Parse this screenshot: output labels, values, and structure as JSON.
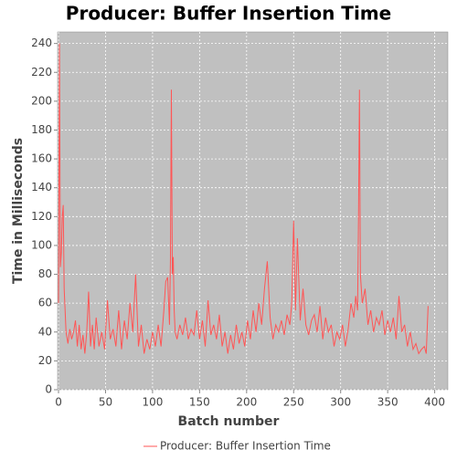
{
  "chart_data": {
    "type": "line",
    "title": "Producer: Buffer Insertion Time",
    "x_label": "Batch number",
    "y_label": "Time in Milliseconds",
    "xlim": [
      -1,
      414
    ],
    "ylim": [
      0,
      248
    ],
    "xticks": [
      0,
      50,
      100,
      150,
      200,
      250,
      300,
      350,
      400
    ],
    "yticks": [
      0,
      20,
      40,
      60,
      80,
      100,
      120,
      140,
      160,
      180,
      200,
      220,
      240
    ],
    "grid": true,
    "legend": "bottom",
    "background": "#c0c0c0",
    "x": [
      0,
      1,
      2,
      3,
      4,
      5,
      6,
      8,
      10,
      12,
      14,
      16,
      18,
      20,
      22,
      24,
      26,
      28,
      30,
      32,
      34,
      36,
      38,
      40,
      43,
      46,
      49,
      52,
      55,
      58,
      61,
      64,
      67,
      70,
      73,
      76,
      79,
      82,
      85,
      88,
      91,
      94,
      97,
      100,
      103,
      106,
      109,
      112,
      114,
      116,
      118,
      119,
      120,
      121,
      122,
      123,
      124,
      126,
      129,
      132,
      135,
      138,
      141,
      144,
      147,
      150,
      153,
      156,
      159,
      162,
      165,
      168,
      171,
      174,
      177,
      180,
      183,
      186,
      189,
      192,
      195,
      198,
      201,
      204,
      207,
      210,
      213,
      216,
      219,
      222,
      225,
      228,
      231,
      234,
      237,
      240,
      243,
      246,
      248,
      250,
      252,
      254,
      257,
      260,
      263,
      266,
      269,
      272,
      275,
      278,
      281,
      284,
      287,
      290,
      293,
      296,
      299,
      302,
      305,
      308,
      311,
      314,
      316,
      318,
      319,
      320,
      321,
      323,
      326,
      329,
      332,
      335,
      338,
      341,
      344,
      347,
      350,
      353,
      356,
      359,
      362,
      365,
      368,
      371,
      374,
      377,
      380,
      383,
      386,
      389,
      391,
      393
    ],
    "series": [
      {
        "name": "Producer: Buffer Insertion Time",
        "color": "#ff5555",
        "values": [
          60,
          240,
          85,
          95,
          120,
          128,
          70,
          40,
          32,
          42,
          35,
          40,
          48,
          30,
          45,
          28,
          38,
          25,
          40,
          68,
          30,
          45,
          28,
          50,
          30,
          40,
          28,
          62,
          35,
          42,
          30,
          55,
          28,
          48,
          35,
          60,
          40,
          80,
          30,
          45,
          25,
          35,
          28,
          40,
          30,
          45,
          30,
          55,
          75,
          78,
          45,
          90,
          208,
          80,
          92,
          55,
          40,
          35,
          45,
          38,
          50,
          35,
          42,
          38,
          55,
          35,
          48,
          30,
          62,
          38,
          45,
          35,
          52,
          30,
          40,
          25,
          38,
          28,
          45,
          32,
          40,
          30,
          48,
          35,
          55,
          40,
          60,
          45,
          70,
          89,
          50,
          35,
          45,
          40,
          48,
          38,
          52,
          45,
          60,
          117,
          55,
          105,
          48,
          70,
          45,
          38,
          48,
          52,
          40,
          58,
          35,
          50,
          40,
          45,
          30,
          40,
          35,
          45,
          30,
          42,
          60,
          50,
          65,
          55,
          120,
          208,
          80,
          60,
          70,
          45,
          55,
          40,
          50,
          45,
          55,
          38,
          48,
          40,
          50,
          35,
          65,
          40,
          45,
          30,
          40,
          28,
          32,
          25,
          28,
          30,
          25,
          58
        ]
      }
    ]
  }
}
